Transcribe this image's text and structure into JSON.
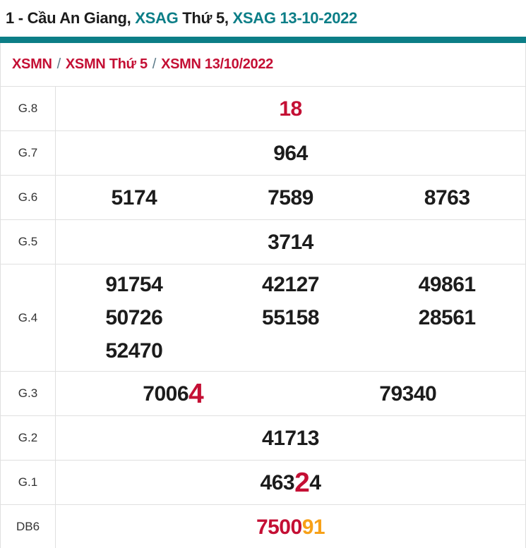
{
  "colors": {
    "teal": "#0c7e87",
    "red": "#c40f34",
    "orange": "#f7a119",
    "dark": "#1c1c1c",
    "separator": "#5c7a89",
    "border": "#e0e0e0"
  },
  "header": {
    "title_parts": [
      {
        "text": "1 - Cầu An Giang, ",
        "color": "dark",
        "link": false
      },
      {
        "text": "XSAG",
        "color": "teal",
        "link": true
      },
      {
        "text": " Thứ 5, ",
        "color": "dark",
        "link": false
      },
      {
        "text": "XSAG 13-10-2022",
        "color": "teal",
        "link": true
      }
    ]
  },
  "breadcrumb": {
    "separator": "/",
    "items": [
      {
        "label": "XSMN"
      },
      {
        "label": "XSMN Thứ 5"
      },
      {
        "label": "XSMN 13/10/2022"
      }
    ]
  },
  "results_table": {
    "rows": [
      {
        "label": "G.8",
        "cols": 1,
        "cells": [
          [
            {
              "t": "18",
              "c": "red"
            }
          ]
        ]
      },
      {
        "label": "G.7",
        "cols": 1,
        "cells": [
          [
            {
              "t": "964"
            }
          ]
        ]
      },
      {
        "label": "G.6",
        "cols": 3,
        "cells": [
          [
            {
              "t": "5174"
            }
          ],
          [
            {
              "t": "7589"
            }
          ],
          [
            {
              "t": "8763"
            }
          ]
        ]
      },
      {
        "label": "G.5",
        "cols": 1,
        "cells": [
          [
            {
              "t": "3714"
            }
          ]
        ]
      },
      {
        "label": "G.4",
        "cols": 3,
        "cells": [
          [
            {
              "t": "91754"
            }
          ],
          [
            {
              "t": "42127"
            }
          ],
          [
            {
              "t": "49861"
            }
          ],
          [
            {
              "t": "50726"
            }
          ],
          [
            {
              "t": "55158"
            }
          ],
          [
            {
              "t": "28561"
            }
          ],
          [
            {
              "t": "52470"
            }
          ]
        ]
      },
      {
        "label": "G.3",
        "cols": 2,
        "cells": [
          [
            {
              "t": "7006"
            },
            {
              "t": "4",
              "c": "red",
              "big": true
            }
          ],
          [
            {
              "t": "79340"
            }
          ]
        ]
      },
      {
        "label": "G.2",
        "cols": 1,
        "cells": [
          [
            {
              "t": "41713"
            }
          ]
        ]
      },
      {
        "label": "G.1",
        "cols": 1,
        "cells": [
          [
            {
              "t": "463"
            },
            {
              "t": "2",
              "c": "red",
              "big": true
            },
            {
              "t": "4"
            }
          ]
        ]
      },
      {
        "label": "DB6",
        "cols": 1,
        "cells": [
          [
            {
              "t": "7500",
              "c": "red"
            },
            {
              "t": "91",
              "c": "orange"
            }
          ]
        ]
      }
    ]
  }
}
